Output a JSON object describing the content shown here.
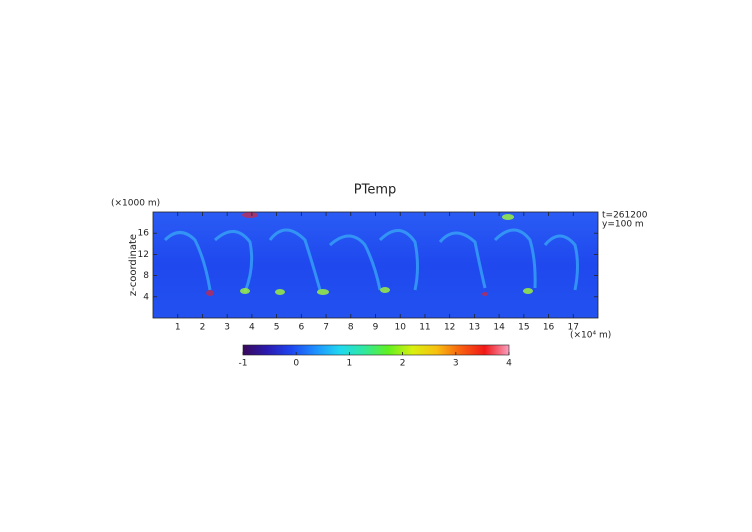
{
  "chart_data": {
    "type": "heatmap",
    "title": "PTemp",
    "y_label": "z-coordinate",
    "y_unit": "(×1000 m)",
    "x_unit": "(×10⁴ m)",
    "annotations": [
      "t=261200",
      "y=100 m"
    ],
    "xlim": [
      0,
      18
    ],
    "xticks": [
      1,
      2,
      3,
      4,
      5,
      6,
      7,
      8,
      9,
      10,
      11,
      12,
      13,
      14,
      15,
      16,
      17
    ],
    "ylim": [
      0,
      20
    ],
    "yticks": [
      4,
      8,
      12,
      16
    ],
    "clim": [
      -1,
      4
    ],
    "cticks": [
      -1,
      0,
      1,
      2,
      3,
      4
    ],
    "colormap": [
      "#3a0a5a",
      "#2a1ab0",
      "#1e46f0",
      "#1e90ff",
      "#20d8f0",
      "#30e8a0",
      "#60f020",
      "#d8f010",
      "#f8c010",
      "#f86010",
      "#f01818",
      "#f8a0c0"
    ]
  }
}
